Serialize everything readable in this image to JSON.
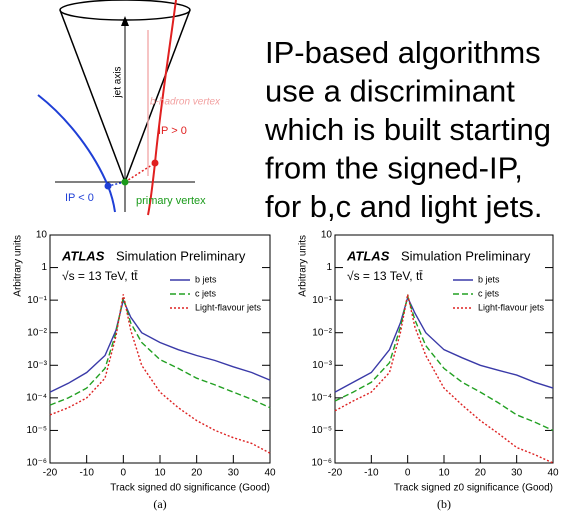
{
  "diagram": {
    "jet_axis": "jet axis",
    "b_vertex": "b-hadron vertex",
    "ip_pos": "IP > 0",
    "ip_neg": "IP < 0",
    "primary": "primary vertex"
  },
  "text": {
    "lines": [
      "IP-based algorithms",
      "use a discriminant",
      "which is built starting",
      "from the signed-IP,",
      "for b,c and light jets."
    ]
  },
  "chart_data": [
    {
      "type": "line",
      "experiment": "ATLAS",
      "subtitle": "Simulation Preliminary",
      "energy_label": "√s = 13 TeV, tt̄",
      "xlabel": "Track signed d0 significance (Good)",
      "ylabel": "Arbitrary units",
      "caption": "(a)",
      "log_y": true,
      "legend": "upper right",
      "xlim": [
        -20,
        40
      ],
      "xticks": [
        -20,
        -10,
        0,
        10,
        20,
        30,
        40
      ],
      "ylim": [
        1e-06,
        10
      ],
      "yticks": [
        {
          "value": 1e-06,
          "label": "10⁻⁶"
        },
        {
          "value": 1e-05,
          "label": "10⁻⁵"
        },
        {
          "value": 0.0001,
          "label": "10⁻⁴"
        },
        {
          "value": 0.001,
          "label": "10⁻³"
        },
        {
          "value": 0.01,
          "label": "10⁻²"
        },
        {
          "value": 0.1,
          "label": "10⁻¹"
        },
        1,
        10
      ],
      "x": [
        -20,
        -15,
        -10,
        -5,
        -2,
        0,
        2,
        5,
        10,
        15,
        20,
        25,
        30,
        35,
        40
      ],
      "series": [
        {
          "name": "b jets",
          "color": "#3a3aa8",
          "style": "solid",
          "values": [
            0.00015,
            0.00028,
            0.0006,
            0.002,
            0.012,
            0.1,
            0.03,
            0.01,
            0.005,
            0.003,
            0.002,
            0.0014,
            0.0009,
            0.0006,
            0.00035
          ]
        },
        {
          "name": "c jets",
          "color": "#22a022",
          "style": "dashed",
          "values": [
            6e-05,
            0.0001,
            0.0002,
            0.0008,
            0.01,
            0.12,
            0.02,
            0.005,
            0.0015,
            0.0008,
            0.0004,
            0.00025,
            0.00015,
            9e-05,
            5e-05
          ]
        },
        {
          "name": "Light-flavour jets",
          "color": "#dd2222",
          "style": "dotted",
          "values": [
            3e-05,
            5e-05,
            0.0001,
            0.0004,
            0.008,
            0.15,
            0.012,
            0.001,
            0.00015,
            5e-05,
            2e-05,
            1e-05,
            6e-06,
            4e-06,
            2e-06
          ]
        }
      ]
    },
    {
      "type": "line",
      "experiment": "ATLAS",
      "subtitle": "Simulation Preliminary",
      "energy_label": "√s = 13 TeV, tt̄",
      "xlabel": "Track signed z0 significance (Good)",
      "ylabel": "Arbitrary units",
      "caption": "(b)",
      "log_y": true,
      "legend": "upper right",
      "xlim": [
        -20,
        40
      ],
      "xticks": [
        -20,
        -10,
        0,
        10,
        20,
        30,
        40
      ],
      "ylim": [
        1e-06,
        10
      ],
      "yticks": [
        {
          "value": 1e-06,
          "label": "10⁻⁶"
        },
        {
          "value": 1e-05,
          "label": "10⁻⁵"
        },
        {
          "value": 0.0001,
          "label": "10⁻⁴"
        },
        {
          "value": 0.001,
          "label": "10⁻³"
        },
        {
          "value": 0.01,
          "label": "10⁻²"
        },
        {
          "value": 0.1,
          "label": "10⁻¹"
        },
        1,
        10
      ],
      "x": [
        -20,
        -15,
        -10,
        -5,
        -2,
        0,
        2,
        5,
        10,
        15,
        20,
        25,
        30,
        35,
        40
      ],
      "series": [
        {
          "name": "b jets",
          "color": "#3a3aa8",
          "style": "solid",
          "values": [
            0.00015,
            0.0003,
            0.0006,
            0.003,
            0.02,
            0.12,
            0.04,
            0.01,
            0.003,
            0.0017,
            0.001,
            0.0007,
            0.0005,
            0.0003,
            0.0002
          ]
        },
        {
          "name": "c jets",
          "color": "#22a022",
          "style": "dashed",
          "values": [
            8e-05,
            0.00015,
            0.0003,
            0.0012,
            0.015,
            0.13,
            0.025,
            0.004,
            0.0008,
            0.0003,
            0.00015,
            7e-05,
            3e-05,
            1.8e-05,
            1e-05
          ]
        },
        {
          "name": "Light-flavour jets",
          "color": "#dd2222",
          "style": "dotted",
          "values": [
            4e-05,
            8e-05,
            0.00015,
            0.0006,
            0.01,
            0.15,
            0.015,
            0.002,
            0.0002,
            6e-05,
            2e-05,
            8e-06,
            3e-06,
            1.8e-06,
            1e-06
          ]
        }
      ]
    }
  ]
}
